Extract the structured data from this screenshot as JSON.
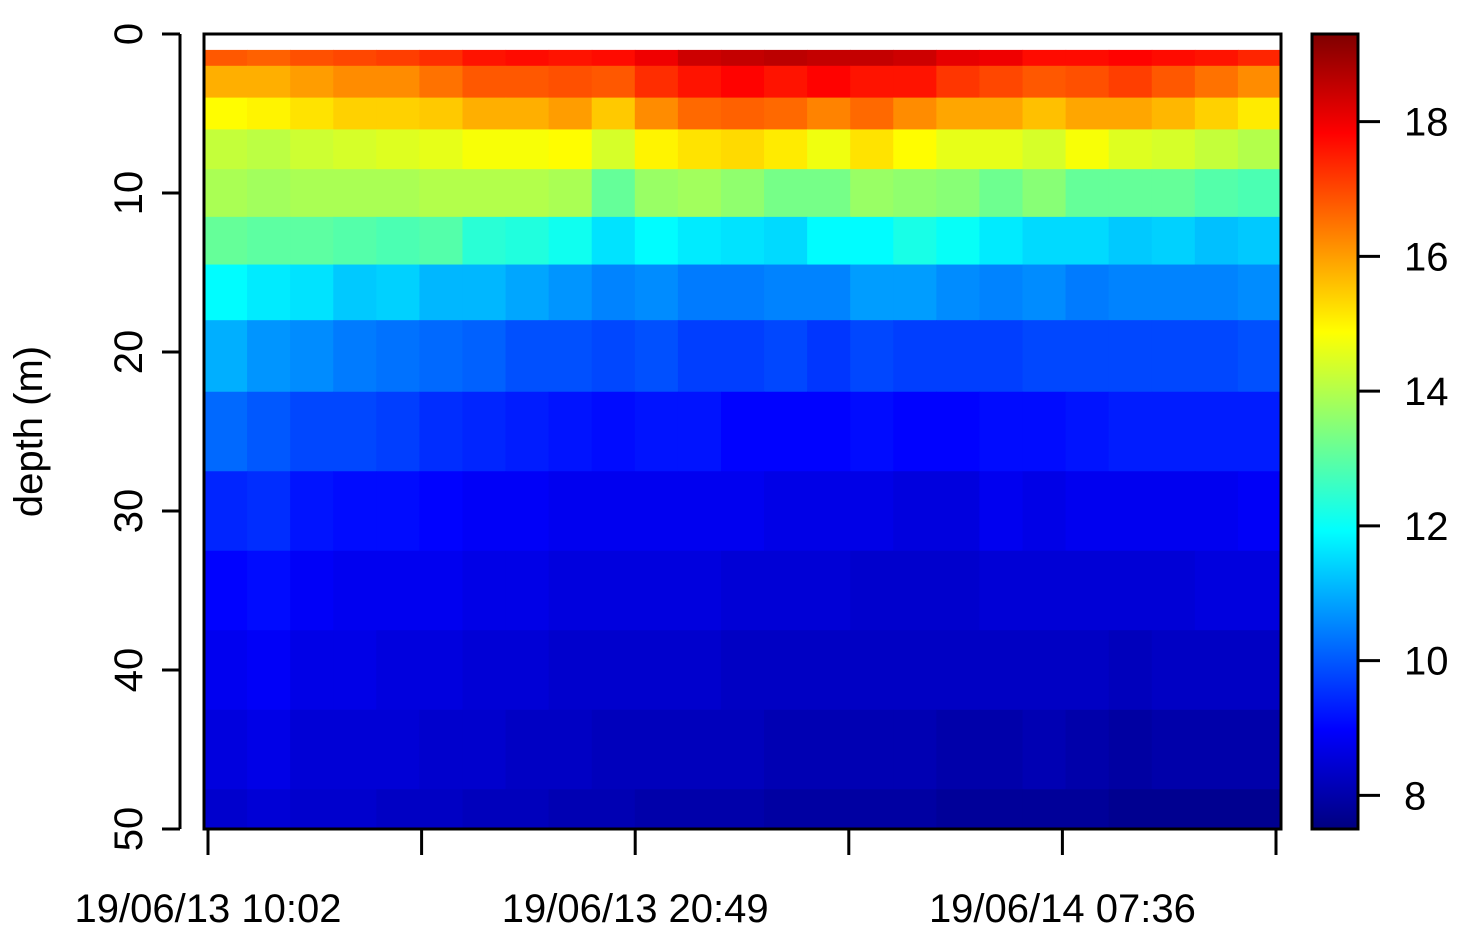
{
  "chart_data": {
    "type": "heatmap",
    "ylabel": "depth (m)",
    "xlabel": "",
    "title": "",
    "y_axis": {
      "range": [
        0,
        50
      ],
      "reversed": true,
      "ticks": [
        0,
        10,
        20,
        30,
        40,
        50
      ],
      "tick_labels": [
        "0",
        "10",
        "20",
        "30",
        "40",
        "50"
      ]
    },
    "x_axis": {
      "tick_labels": [
        "19/06/13 10:02",
        "19/06/13 20:49",
        "19/06/14 07:36"
      ],
      "minor_ticks": 6
    },
    "colorbar": {
      "range": [
        7.5,
        19.3
      ],
      "ticks": [
        8,
        10,
        12,
        14,
        16,
        18
      ],
      "tick_labels": [
        "8",
        "10",
        "12",
        "14",
        "16",
        "18"
      ],
      "colors": [
        "#00007f",
        "#0000ff",
        "#007fff",
        "#00ffff",
        "#7fff7f",
        "#ffff00",
        "#ff7f00",
        "#ff0000",
        "#7f0000"
      ]
    },
    "x_columns": 25,
    "y_rows": [
      1,
      3,
      5,
      7,
      10,
      13,
      16,
      20,
      25,
      30,
      35,
      40,
      45,
      50
    ],
    "values": [
      [
        16.8,
        16.7,
        16.9,
        17.0,
        17.1,
        17.3,
        17.6,
        17.7,
        17.6,
        17.7,
        18.0,
        18.4,
        18.5,
        18.6,
        18.5,
        18.5,
        18.4,
        18.1,
        18.0,
        17.7,
        17.7,
        17.8,
        17.7,
        17.6,
        17.4
      ],
      [
        15.8,
        15.8,
        16.0,
        16.2,
        16.2,
        16.5,
        16.8,
        16.8,
        16.9,
        16.8,
        17.3,
        17.6,
        17.8,
        17.6,
        17.8,
        17.6,
        17.6,
        17.2,
        17.0,
        16.8,
        16.9,
        17.1,
        16.8,
        16.5,
        16.2
      ],
      [
        14.9,
        15.0,
        15.2,
        15.4,
        15.4,
        15.5,
        15.8,
        15.8,
        16.0,
        15.5,
        16.2,
        16.6,
        16.7,
        16.6,
        16.3,
        16.6,
        16.2,
        15.9,
        15.9,
        15.6,
        15.9,
        15.9,
        15.7,
        15.4,
        15.1
      ],
      [
        14.2,
        14.1,
        14.3,
        14.4,
        14.5,
        14.6,
        14.8,
        14.8,
        14.9,
        14.4,
        15.0,
        15.2,
        15.3,
        15.1,
        14.7,
        15.2,
        14.9,
        14.6,
        14.6,
        14.4,
        14.8,
        14.5,
        14.4,
        14.2,
        14.0
      ],
      [
        13.9,
        13.8,
        13.9,
        13.9,
        13.9,
        14.0,
        14.0,
        14.0,
        13.9,
        13.1,
        13.7,
        13.8,
        13.6,
        13.3,
        13.3,
        13.7,
        13.6,
        13.5,
        13.2,
        13.5,
        13.1,
        13.1,
        13.1,
        12.9,
        12.8
      ],
      [
        13.1,
        13.0,
        13.0,
        12.9,
        12.8,
        12.9,
        12.4,
        12.3,
        12.1,
        11.6,
        11.9,
        11.7,
        11.6,
        11.5,
        11.9,
        11.9,
        12.2,
        12.0,
        11.7,
        11.5,
        11.5,
        11.3,
        11.4,
        11.2,
        11.3
      ],
      [
        11.9,
        11.7,
        11.6,
        11.3,
        11.4,
        11.1,
        11.1,
        10.9,
        10.7,
        10.5,
        10.6,
        10.4,
        10.4,
        10.5,
        10.5,
        10.8,
        10.8,
        10.6,
        10.5,
        10.6,
        10.4,
        10.5,
        10.5,
        10.5,
        10.6
      ],
      [
        11.0,
        10.7,
        10.6,
        10.4,
        10.3,
        10.2,
        10.1,
        9.9,
        9.9,
        9.8,
        9.9,
        9.7,
        9.7,
        9.8,
        9.6,
        9.8,
        9.7,
        9.7,
        9.7,
        9.8,
        9.8,
        9.8,
        9.8,
        9.8,
        9.9
      ],
      [
        10.2,
        10.0,
        9.8,
        9.8,
        9.7,
        9.5,
        9.4,
        9.3,
        9.2,
        9.1,
        9.2,
        9.2,
        9.0,
        9.0,
        9.0,
        9.1,
        9.0,
        9.0,
        9.1,
        9.1,
        9.2,
        9.3,
        9.3,
        9.3,
        9.3
      ],
      [
        9.4,
        9.5,
        9.2,
        9.1,
        9.1,
        9.0,
        8.9,
        8.9,
        8.8,
        8.8,
        8.8,
        8.8,
        8.8,
        8.7,
        8.7,
        8.7,
        8.6,
        8.6,
        8.8,
        8.7,
        8.8,
        8.8,
        8.8,
        8.8,
        8.9
      ],
      [
        9.0,
        9.1,
        8.9,
        8.8,
        8.8,
        8.8,
        8.7,
        8.7,
        8.6,
        8.6,
        8.6,
        8.6,
        8.5,
        8.5,
        8.5,
        8.4,
        8.4,
        8.4,
        8.5,
        8.5,
        8.5,
        8.5,
        8.5,
        8.6,
        8.6
      ],
      [
        8.8,
        8.9,
        8.7,
        8.7,
        8.6,
        8.6,
        8.5,
        8.5,
        8.4,
        8.4,
        8.4,
        8.4,
        8.3,
        8.3,
        8.3,
        8.3,
        8.3,
        8.3,
        8.3,
        8.3,
        8.3,
        8.2,
        8.3,
        8.3,
        8.3
      ],
      [
        8.6,
        8.7,
        8.5,
        8.5,
        8.5,
        8.4,
        8.4,
        8.3,
        8.3,
        8.2,
        8.2,
        8.2,
        8.2,
        8.1,
        8.1,
        8.1,
        8.1,
        8.0,
        8.0,
        8.1,
        8.0,
        7.9,
        8.0,
        8.0,
        8.0
      ],
      [
        8.4,
        8.5,
        8.4,
        8.4,
        8.3,
        8.3,
        8.2,
        8.2,
        8.1,
        8.1,
        8.0,
        8.0,
        8.0,
        7.9,
        7.9,
        7.9,
        7.9,
        7.8,
        7.8,
        7.8,
        7.8,
        7.7,
        7.7,
        7.7,
        7.7
      ]
    ]
  }
}
